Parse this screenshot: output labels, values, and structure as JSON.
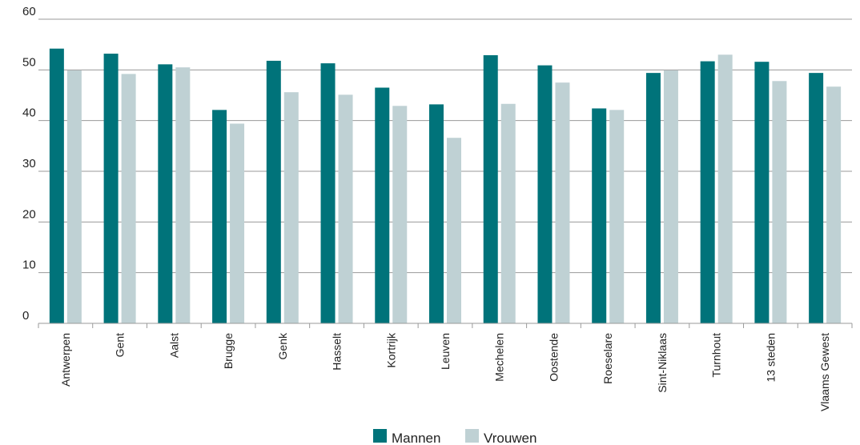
{
  "chart_data": {
    "type": "bar",
    "categories": [
      "Antwerpen",
      "Gent",
      "Aalst",
      "Brugge",
      "Genk",
      "Hasselt",
      "Kortrijk",
      "Leuven",
      "Mechelen",
      "Oostende",
      "Roeselare",
      "Sint-Niklaas",
      "Turnhout",
      "13 steden",
      "Vlaams Gewest"
    ],
    "series": [
      {
        "name": "Mannen",
        "color": "#00737a",
        "values": [
          54.2,
          53.2,
          51.1,
          42.1,
          51.8,
          51.3,
          46.5,
          43.2,
          52.9,
          50.9,
          42.4,
          49.4,
          51.7,
          51.6,
          49.4
        ]
      },
      {
        "name": "Vrouwen",
        "color": "#bfd1d4",
        "values": [
          49.9,
          49.2,
          50.5,
          39.4,
          45.6,
          45.1,
          42.9,
          36.6,
          43.3,
          47.5,
          42.1,
          49.9,
          53.0,
          47.8,
          46.7
        ]
      }
    ],
    "yticks": [
      "0",
      "10",
      "20",
      "30",
      "40",
      "50",
      "60"
    ],
    "ylim": [
      0,
      60
    ],
    "title": "",
    "xlabel": "",
    "ylabel": "",
    "grid": true,
    "legend": "bottom-center"
  }
}
